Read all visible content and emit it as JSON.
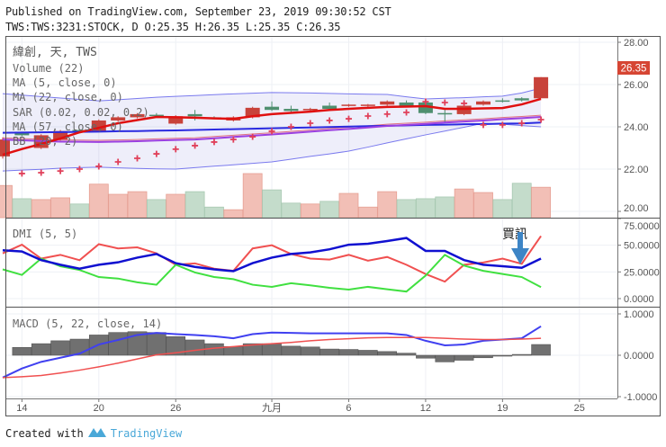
{
  "header": {
    "published": "Published on TradingView.com, September 23, 2019 09:30:52 CST",
    "symbol_line": "TWS:TWS:3231:STOCK, D O:25.35 H:26.35 L:25.35 C:26.35"
  },
  "legend": {
    "title": "緯創, 天, TWS",
    "volume": "Volume (22)",
    "ma5": "MA (5, close, 0)",
    "ma22": "MA (22, close, 0)",
    "sar": "SAR (0.02, 0.02, 0.2)",
    "ma57": "MA (57, close, 0)",
    "bb": "BB (20, 2)",
    "dmi": "DMI (5, 5)",
    "macd": "MACD (5, 22, close, 14)"
  },
  "annotation": {
    "text": "買訊",
    "icon": "arrow-down-icon",
    "color": "#3d85c6"
  },
  "last_price": "26.35",
  "footer": {
    "created_with": "Created with",
    "brand": "TradingView"
  },
  "colors": {
    "up": "#c8423a",
    "down": "#4f8f6f",
    "ma5": "#e01010",
    "ma22": "#9b40e0",
    "ma57": "#2a2ae0",
    "bb": "#7a7aee",
    "sar": "#e0405a",
    "plus_di": "#f05050",
    "minus_di": "#40e040",
    "adx": "#1010d0",
    "macd": "#4040f0",
    "signal": "#f05050",
    "hist": "#707070"
  },
  "chart_data": [
    {
      "type": "candlestick",
      "pane": "price",
      "ylim": [
        20,
        28
      ],
      "yticks": [
        "28.00",
        "26.00",
        "24.00",
        "22.00",
        "20.00"
      ],
      "xticks": [
        {
          "i": 1,
          "label": "14"
        },
        {
          "i": 5,
          "label": "20"
        },
        {
          "i": 9,
          "label": "26"
        },
        {
          "i": 14,
          "label": "九月"
        },
        {
          "i": 18,
          "label": "6"
        },
        {
          "i": 22,
          "label": "12"
        },
        {
          "i": 26,
          "label": "19"
        },
        {
          "i": 30,
          "label": "25"
        }
      ],
      "ohlc": [
        [
          22.6,
          23.5,
          22.5,
          23.4
        ],
        [
          23.7,
          23.75,
          23.55,
          23.6
        ],
        [
          23.0,
          23.65,
          22.95,
          23.6
        ],
        [
          23.4,
          23.85,
          23.35,
          23.8
        ],
        [
          23.85,
          23.9,
          23.75,
          23.8
        ],
        [
          23.8,
          24.35,
          23.75,
          24.3
        ],
        [
          24.3,
          24.5,
          24.25,
          24.45
        ],
        [
          24.45,
          24.65,
          24.4,
          24.6
        ],
        [
          24.57,
          24.65,
          24.5,
          24.53
        ],
        [
          24.15,
          24.55,
          24.1,
          24.5
        ],
        [
          24.6,
          24.8,
          24.3,
          24.5
        ],
        [
          24.45,
          24.5,
          24.4,
          24.42
        ],
        [
          24.3,
          24.5,
          24.25,
          24.45
        ],
        [
          24.45,
          24.95,
          24.4,
          24.9
        ],
        [
          24.95,
          25.2,
          24.75,
          24.8
        ],
        [
          24.85,
          25.0,
          24.7,
          24.75
        ],
        [
          24.8,
          24.9,
          24.75,
          24.85
        ],
        [
          25.0,
          25.15,
          24.8,
          24.85
        ],
        [
          25.0,
          25.08,
          24.95,
          25.05
        ],
        [
          25.0,
          25.08,
          24.95,
          25.05
        ],
        [
          25.05,
          25.25,
          25.0,
          25.2
        ],
        [
          25.15,
          25.25,
          24.95,
          25.0
        ],
        [
          25.15,
          25.2,
          24.6,
          24.65
        ],
        [
          24.65,
          24.9,
          24.2,
          24.6
        ],
        [
          24.6,
          25.05,
          24.55,
          25.0
        ],
        [
          25.05,
          25.25,
          25.0,
          25.2
        ],
        [
          25.25,
          25.35,
          25.15,
          25.2
        ],
        [
          25.35,
          25.4,
          25.2,
          25.25
        ],
        [
          25.35,
          26.35,
          25.35,
          26.35
        ]
      ],
      "volume_relative": [
        73,
        43,
        41,
        45,
        31,
        76,
        53,
        59,
        41,
        53,
        59,
        24,
        18,
        100,
        63,
        33,
        31,
        37,
        55,
        24,
        59,
        41,
        43,
        47,
        65,
        57,
        41,
        78,
        69
      ],
      "ma5": [
        22.68,
        22.95,
        23.19,
        23.45,
        23.74,
        23.95,
        24.17,
        24.32,
        24.47,
        24.45,
        24.43,
        24.4,
        24.38,
        24.5,
        24.6,
        24.66,
        24.72,
        24.8,
        24.85,
        24.9,
        24.94,
        24.96,
        24.98,
        24.85,
        24.85,
        24.87,
        24.89,
        25.06,
        25.32
      ],
      "ma22": [
        23.4,
        23.36,
        23.33,
        23.3,
        23.29,
        23.28,
        23.3,
        23.32,
        23.35,
        23.38,
        23.4,
        23.46,
        23.52,
        23.58,
        23.64,
        23.7,
        23.77,
        23.84,
        23.9,
        23.97,
        24.04,
        24.09,
        24.14,
        24.2,
        24.25,
        24.3,
        24.36,
        24.41,
        24.47
      ],
      "ma57": [
        23.72,
        23.73,
        23.74,
        23.75,
        23.76,
        23.77,
        23.79,
        23.8,
        23.82,
        23.83,
        23.85,
        23.87,
        23.89,
        23.91,
        23.93,
        23.95,
        23.97,
        23.99,
        24.01,
        24.03,
        24.05,
        24.07,
        24.09,
        24.1,
        24.12,
        24.13,
        24.15,
        24.16,
        24.2
      ],
      "bb_upper": [
        25.57,
        25.5,
        25.43,
        25.36,
        25.3,
        25.23,
        25.28,
        25.34,
        25.4,
        25.44,
        25.48,
        25.52,
        25.56,
        25.59,
        25.62,
        25.61,
        25.6,
        25.58,
        25.56,
        25.54,
        25.53,
        25.42,
        25.32,
        25.35,
        25.38,
        25.42,
        25.45,
        25.6,
        25.83
      ],
      "bb_lower": [
        21.91,
        21.95,
        21.99,
        22.04,
        22.07,
        22.09,
        22.06,
        22.03,
        22.01,
        22.0,
        22.07,
        22.14,
        22.2,
        22.27,
        22.34,
        22.47,
        22.6,
        22.72,
        22.85,
        23.04,
        23.24,
        23.43,
        23.62,
        23.8,
        23.98,
        24.17,
        24.12,
        24.06,
        24.0
      ],
      "sar": [
        null,
        21.79,
        21.83,
        21.91,
        22.0,
        22.13,
        22.34,
        22.51,
        22.72,
        22.94,
        23.11,
        23.28,
        23.4,
        23.53,
        23.79,
        24.0,
        24.17,
        24.3,
        24.38,
        24.51,
        24.6,
        24.68,
        25.19,
        25.15,
        25.11,
        24.09,
        24.09,
        24.17,
        24.34
      ]
    },
    {
      "type": "line",
      "pane": "dmi",
      "ylim": [
        0,
        75
      ],
      "yticks": [
        "75.0000",
        "50.0000",
        "25.0000",
        "0.0000"
      ],
      "series": [
        {
          "key": "plus_di",
          "values": [
            42.4,
            50.5,
            37.5,
            41,
            36,
            51,
            47,
            48,
            42.4,
            31.7,
            33,
            28,
            26,
            47,
            50,
            41.8,
            37.5,
            36.6,
            41,
            35.5,
            39,
            31.7,
            23,
            15.9,
            31.7,
            33.8,
            37.5,
            32.6,
            58.6
          ]
        },
        {
          "key": "minus_di",
          "values": [
            27.4,
            22.2,
            37.5,
            30.3,
            26.8,
            20.2,
            18.8,
            15.3,
            13,
            31.7,
            24.5,
            20.2,
            18.2,
            13,
            11,
            14.4,
            12.4,
            10.1,
            8.4,
            11,
            8.7,
            6.6,
            21.6,
            41,
            30.9,
            26,
            23.1,
            20.2,
            10.7
          ]
        },
        {
          "key": "adx",
          "values": [
            45.3,
            44.1,
            36.1,
            31.7,
            28,
            31.7,
            34,
            38.4,
            41.8,
            33.2,
            29.7,
            27.4,
            25.7,
            33.2,
            38.4,
            41.8,
            43.3,
            46.2,
            50.5,
            51.4,
            53.9,
            56.8,
            44.7,
            44.7,
            36.1,
            31.7,
            30.3,
            28.9,
            37.5
          ]
        }
      ]
    },
    {
      "type": "line",
      "pane": "macd",
      "ylim": [
        -1,
        1
      ],
      "yticks": [
        "1.0000",
        "0.0000",
        "-1.0000"
      ],
      "series": [
        {
          "key": "macd",
          "values": [
            -0.54,
            -0.32,
            -0.16,
            -0.06,
            0.04,
            0.26,
            0.37,
            0.49,
            0.54,
            0.51,
            0.49,
            0.46,
            0.41,
            0.51,
            0.55,
            0.54,
            0.53,
            0.53,
            0.53,
            0.53,
            0.53,
            0.49,
            0.35,
            0.24,
            0.26,
            0.35,
            0.38,
            0.41,
            0.7
          ]
        },
        {
          "key": "signal",
          "values": [
            -0.54,
            -0.52,
            -0.49,
            -0.43,
            -0.36,
            -0.28,
            -0.19,
            -0.09,
            0.01,
            0.06,
            0.12,
            0.17,
            0.21,
            0.25,
            0.28,
            0.31,
            0.35,
            0.38,
            0.4,
            0.42,
            0.43,
            0.43,
            0.43,
            0.41,
            0.39,
            0.38,
            0.38,
            0.39,
            0.41
          ]
        }
      ],
      "histogram": [
        null,
        0.19,
        0.28,
        0.35,
        0.39,
        0.49,
        0.55,
        0.57,
        0.55,
        0.45,
        0.37,
        0.28,
        0.21,
        0.28,
        0.28,
        0.22,
        0.2,
        0.15,
        0.14,
        0.12,
        0.09,
        0.05,
        -0.07,
        -0.16,
        -0.12,
        -0.06,
        -0.01,
        0.02,
        0.26
      ]
    }
  ]
}
